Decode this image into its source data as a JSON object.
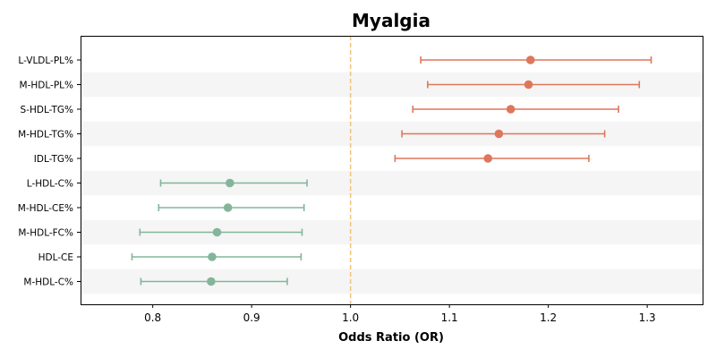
{
  "chart_data": {
    "type": "forest",
    "title": "Myalgia",
    "xlabel": "Odds Ratio (OR)",
    "xlim": [
      0.727,
      1.356
    ],
    "x_ticks": [
      0.8,
      0.9,
      1.0,
      1.1,
      1.2,
      1.3
    ],
    "x_tick_labels": [
      "0.8",
      "0.9",
      "1.0",
      "1.1",
      "1.2",
      "1.3"
    ],
    "reference_line": 1.0,
    "reference_line_color": "#f2c27b",
    "colors": {
      "risk": "#dd775c",
      "protective": "#84b59b",
      "band": "#f5f5f5"
    },
    "series": [
      {
        "label": "L-VLDL-PL%",
        "or": 1.182,
        "lower": 1.071,
        "upper": 1.304,
        "group": "risk"
      },
      {
        "label": "M-HDL-PL%",
        "or": 1.18,
        "lower": 1.078,
        "upper": 1.292,
        "group": "risk"
      },
      {
        "label": "S-HDL-TG%",
        "or": 1.162,
        "lower": 1.063,
        "upper": 1.271,
        "group": "risk"
      },
      {
        "label": "M-HDL-TG%",
        "or": 1.15,
        "lower": 1.052,
        "upper": 1.257,
        "group": "risk"
      },
      {
        "label": "IDL-TG%",
        "or": 1.139,
        "lower": 1.045,
        "upper": 1.241,
        "group": "risk"
      },
      {
        "label": "L-HDL-C%",
        "or": 0.878,
        "lower": 0.808,
        "upper": 0.956,
        "group": "protective"
      },
      {
        "label": "M-HDL-CE%",
        "or": 0.876,
        "lower": 0.806,
        "upper": 0.953,
        "group": "protective"
      },
      {
        "label": "M-HDL-FC%",
        "or": 0.865,
        "lower": 0.787,
        "upper": 0.951,
        "group": "protective"
      },
      {
        "label": "HDL-CE",
        "or": 0.86,
        "lower": 0.779,
        "upper": 0.95,
        "group": "protective"
      },
      {
        "label": "M-HDL-C%",
        "or": 0.859,
        "lower": 0.788,
        "upper": 0.936,
        "group": "protective"
      }
    ]
  }
}
